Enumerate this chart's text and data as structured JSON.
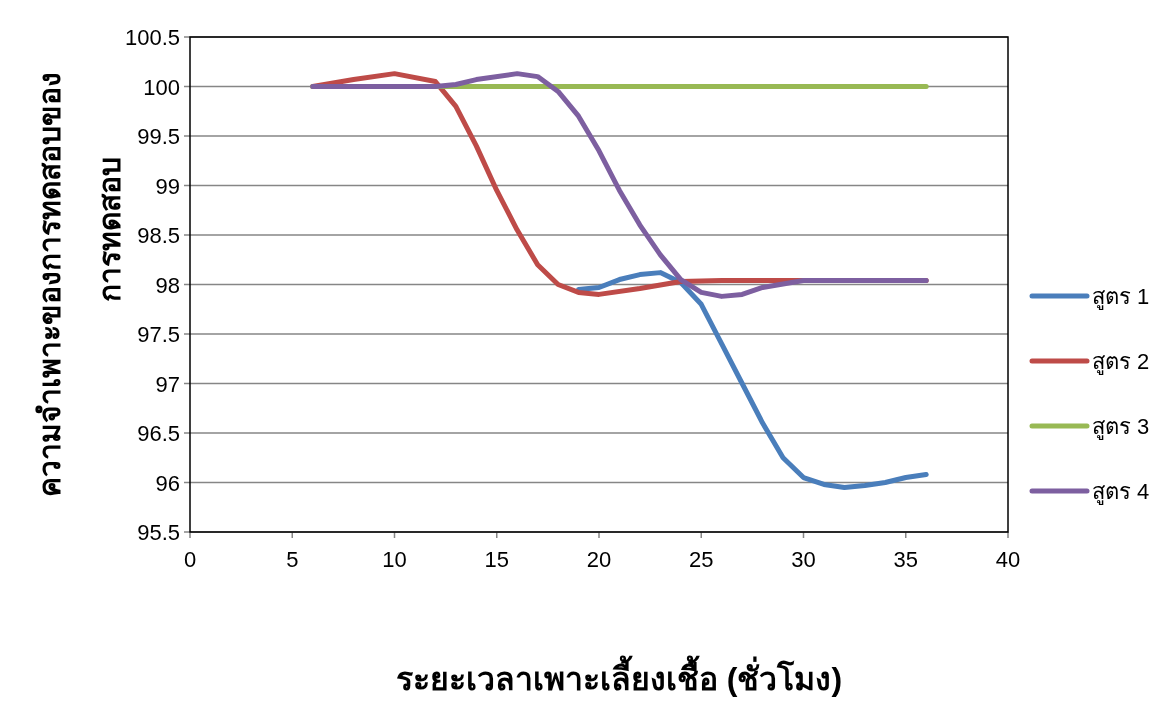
{
  "chart_data": {
    "type": "line",
    "xlabel": "ระยะเวลาเพาะเลี้ยงเชื้อ (ชั่วโมง)",
    "ylabel": "ความจำเพาะของการทดสอบของ\nการทดสอบ",
    "xlim": [
      0,
      40
    ],
    "xticks": [
      0,
      5,
      10,
      15,
      20,
      25,
      30,
      35,
      40
    ],
    "ylim": [
      95.5,
      100.5
    ],
    "yticks": [
      95.5,
      96,
      96.5,
      97,
      97.5,
      98,
      98.5,
      99,
      99.5,
      100,
      100.5
    ],
    "grid": "y",
    "legend": "right",
    "marker": "none",
    "line_style": "solid",
    "series": [
      {
        "name": "สูตร 1",
        "color": "#4a7ebb",
        "x": [
          19,
          20,
          21,
          22,
          23,
          24,
          25,
          26,
          27,
          28,
          29,
          30,
          31,
          32,
          33,
          34,
          35,
          36
        ],
        "values": [
          97.95,
          97.97,
          98.05,
          98.1,
          98.12,
          98.02,
          97.8,
          97.4,
          97.0,
          96.6,
          96.25,
          96.05,
          95.98,
          95.95,
          95.97,
          96.0,
          96.05,
          96.08
        ]
      },
      {
        "name": "สูตร 2",
        "color": "#be4b48",
        "x": [
          6,
          8,
          10,
          12,
          13,
          14,
          15,
          16,
          17,
          18,
          19,
          20,
          22,
          24,
          26,
          30,
          36
        ],
        "values": [
          100,
          100.07,
          100.13,
          100.05,
          99.8,
          99.4,
          98.95,
          98.55,
          98.2,
          98.0,
          97.92,
          97.9,
          97.96,
          98.03,
          98.04,
          98.04,
          98.04
        ]
      },
      {
        "name": "สูตร 3",
        "color": "#98b954",
        "x": [
          6,
          36
        ],
        "values": [
          100,
          100
        ]
      },
      {
        "name": "สูตร 4",
        "color": "#7d5fa0",
        "x": [
          6,
          12,
          13,
          14,
          16,
          17,
          18,
          19,
          20,
          21,
          22,
          23,
          24,
          25,
          26,
          27,
          28,
          30,
          36
        ],
        "values": [
          100,
          100,
          100.02,
          100.07,
          100.13,
          100.1,
          99.95,
          99.7,
          99.35,
          98.95,
          98.6,
          98.3,
          98.05,
          97.92,
          97.88,
          97.9,
          97.97,
          98.04,
          98.04
        ]
      }
    ]
  }
}
